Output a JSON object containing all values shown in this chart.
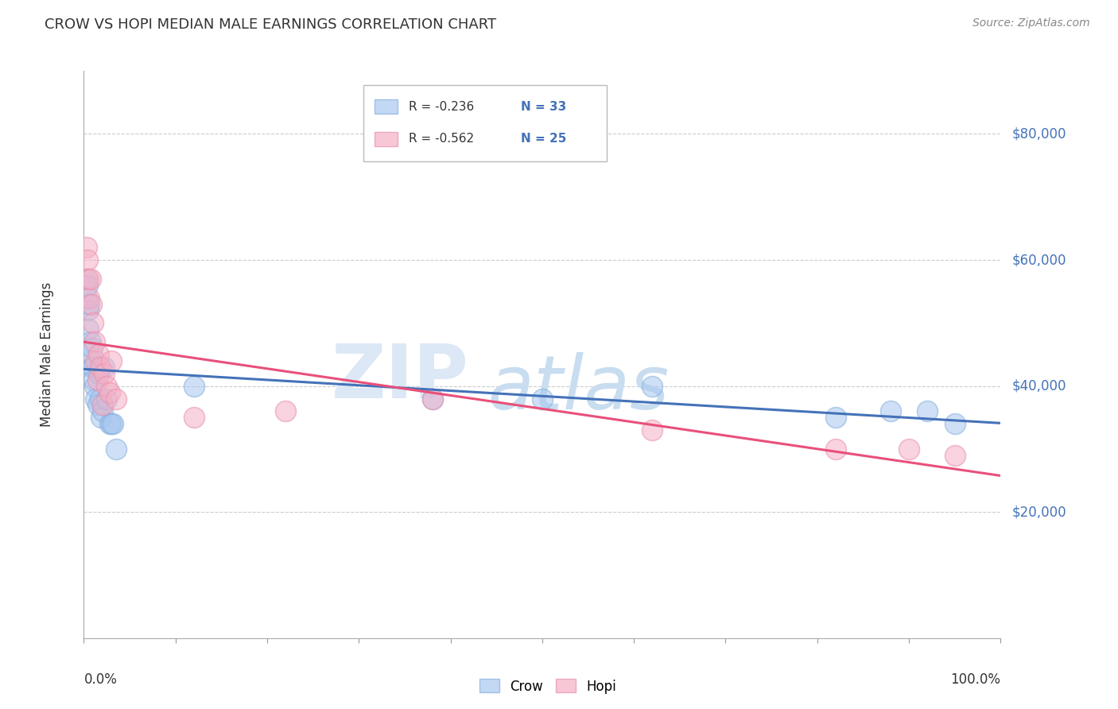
{
  "title": "CROW VS HOPI MEDIAN MALE EARNINGS CORRELATION CHART",
  "source": "Source: ZipAtlas.com",
  "ylabel": "Median Male Earnings",
  "ytick_labels": [
    "$20,000",
    "$40,000",
    "$60,000",
    "$80,000"
  ],
  "ytick_values": [
    20000,
    40000,
    60000,
    80000
  ],
  "ymin": 0,
  "ymax": 90000,
  "xmin": 0.0,
  "xmax": 1.0,
  "crow_color": "#a8c8f0",
  "hopi_color": "#f5b0c5",
  "crow_edge_color": "#85aede",
  "hopi_edge_color": "#e890aa",
  "crow_line_color": "#4472b8",
  "hopi_line_color": "#e8507a",
  "crow_label": "Crow",
  "hopi_label": "Hopi",
  "crow_R": "-0.236",
  "crow_N": "33",
  "hopi_R": "-0.562",
  "hopi_N": "25",
  "N_color": "#4472b8",
  "R_color": "#333333",
  "watermark_ZIP_color": "#dce8f5",
  "watermark_atlas_color": "#c8ddef",
  "background_color": "#ffffff",
  "grid_color": "#cccccc",
  "crow_x": [
    0.003,
    0.003,
    0.004,
    0.005,
    0.005,
    0.006,
    0.007,
    0.008,
    0.009,
    0.009,
    0.01,
    0.011,
    0.012,
    0.013,
    0.015,
    0.016,
    0.018,
    0.019,
    0.02,
    0.022,
    0.025,
    0.028,
    0.03,
    0.032,
    0.035,
    0.12,
    0.38,
    0.5,
    0.62,
    0.82,
    0.88,
    0.92,
    0.95
  ],
  "crow_y": [
    57000,
    54000,
    56000,
    52000,
    49000,
    53000,
    47000,
    44000,
    46000,
    43000,
    43000,
    41000,
    40000,
    38000,
    37000,
    42000,
    38000,
    35000,
    36000,
    43000,
    38000,
    34000,
    34000,
    34000,
    30000,
    40000,
    38000,
    38000,
    40000,
    35000,
    36000,
    36000,
    34000
  ],
  "hopi_x": [
    0.003,
    0.004,
    0.005,
    0.006,
    0.007,
    0.008,
    0.01,
    0.012,
    0.013,
    0.015,
    0.016,
    0.018,
    0.02,
    0.022,
    0.025,
    0.028,
    0.03,
    0.035,
    0.12,
    0.22,
    0.38,
    0.62,
    0.82,
    0.9,
    0.95
  ],
  "hopi_y": [
    62000,
    60000,
    57000,
    54000,
    57000,
    53000,
    50000,
    47000,
    44000,
    41000,
    45000,
    43000,
    37000,
    42000,
    40000,
    39000,
    44000,
    38000,
    35000,
    36000,
    38000,
    33000,
    30000,
    30000,
    29000
  ]
}
